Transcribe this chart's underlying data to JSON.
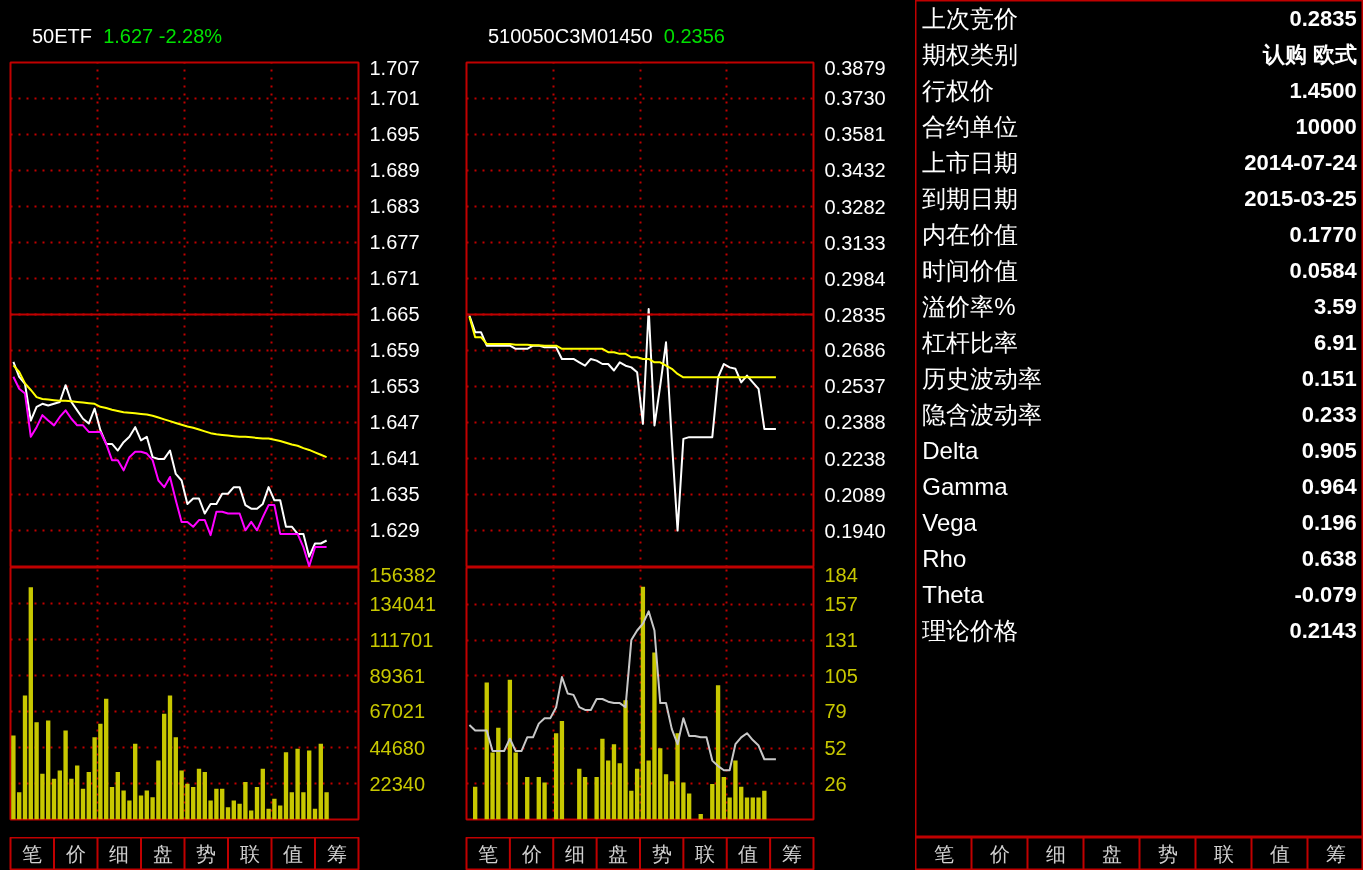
{
  "chart_data": [
    {
      "type": "line",
      "title": "50ETF",
      "subtitle": "1.627 -2.28%",
      "categories": [
        null,
        null,
        null,
        null,
        null,
        null,
        null,
        null,
        null,
        null,
        null,
        null,
        null,
        null,
        null,
        null,
        null,
        null,
        null,
        null,
        null,
        null,
        null,
        null,
        null,
        null,
        null,
        null,
        null,
        null,
        null,
        null,
        null,
        null,
        null,
        null,
        null,
        null,
        null,
        null,
        null,
        null,
        null,
        null,
        null,
        null,
        null,
        null,
        null,
        null,
        null,
        null,
        null,
        null,
        null,
        null,
        null,
        null,
        null,
        null
      ],
      "ylim": [
        1.6228,
        1.707
      ],
      "yticks": [
        1.707,
        1.701,
        1.695,
        1.689,
        1.683,
        1.677,
        1.671,
        1.665,
        1.659,
        1.653,
        1.647,
        1.641,
        1.635,
        1.629
      ],
      "tick_labels": "y",
      "grid": true,
      "ref_lines": [
        {
          "axis": "y",
          "value": 1.665,
          "color": "#c00000"
        }
      ],
      "series": [
        {
          "color": "#ffffff",
          "values": [
            1.6571,
            1.6546,
            1.6534,
            1.6473,
            1.6496,
            1.6501,
            1.6498,
            1.6501,
            1.6504,
            1.6532,
            1.6504,
            1.649,
            1.6476,
            1.6468,
            1.6493,
            1.6457,
            1.6434,
            1.6434,
            1.6423,
            1.6437,
            1.6446,
            1.6462,
            1.644,
            1.6446,
            1.6412,
            1.6409,
            1.6409,
            1.6423,
            1.6384,
            1.6373,
            1.6334,
            1.6343,
            1.6343,
            1.6318,
            1.6334,
            1.6334,
            1.6351,
            1.6351,
            1.6362,
            1.6362,
            1.6332,
            1.6326,
            1.6326,
            1.6334,
            1.6362,
            1.634,
            1.634,
            1.6296,
            1.6296,
            1.6284,
            1.6284,
            1.6246,
            1.6268,
            1.6268,
            1.6273,
            null,
            null,
            null,
            null,
            null
          ]
        },
        {
          "color": "#ff00ff",
          "values": [
            1.6546,
            1.6526,
            1.6518,
            1.6446,
            1.6462,
            1.6482,
            1.6473,
            1.6465,
            1.6479,
            1.649,
            1.6476,
            1.6465,
            1.6465,
            1.6454,
            1.6454,
            1.6454,
            1.6434,
            1.6407,
            1.6407,
            1.639,
            1.6412,
            1.6421,
            1.6421,
            1.6418,
            1.6407,
            1.6373,
            1.6362,
            1.6379,
            1.634,
            1.6304,
            1.6304,
            1.6296,
            1.6307,
            1.6307,
            1.6282,
            1.6321,
            1.6321,
            1.6318,
            1.6318,
            1.6318,
            1.629,
            1.6304,
            1.629,
            1.6312,
            1.6332,
            1.6332,
            1.6284,
            1.6284,
            1.6284,
            1.6284,
            1.6262,
            1.623,
            1.6262,
            1.6262,
            1.6262,
            null,
            null,
            null,
            null,
            null
          ]
        },
        {
          "color": "#ffff00",
          "values": [
            1.6565,
            1.6554,
            1.6535,
            1.6524,
            1.6512,
            1.6509,
            1.6508,
            1.6507,
            1.6506,
            1.6506,
            1.6505,
            1.6504,
            1.6503,
            1.6502,
            1.6501,
            1.6496,
            1.6494,
            1.6491,
            1.6489,
            1.6487,
            1.6486,
            1.6485,
            1.6484,
            1.6483,
            1.6481,
            1.6478,
            1.6475,
            1.6472,
            1.6469,
            1.6466,
            1.6463,
            1.6461,
            1.6458,
            1.6455,
            1.6452,
            1.645,
            1.6449,
            1.6448,
            1.6447,
            1.6446,
            1.6446,
            1.6445,
            1.6444,
            1.6443,
            1.6443,
            1.6441,
            1.6439,
            1.6436,
            1.6433,
            1.6431,
            1.6427,
            1.6424,
            1.642,
            1.6416,
            1.6412,
            null,
            null,
            null,
            null,
            null
          ]
        }
      ]
    },
    {
      "type": "bar",
      "categories": [
        null,
        null,
        null,
        null,
        null,
        null,
        null,
        null,
        null,
        null,
        null,
        null,
        null,
        null,
        null,
        null,
        null,
        null,
        null,
        null,
        null,
        null,
        null,
        null,
        null,
        null,
        null,
        null,
        null,
        null,
        null,
        null,
        null,
        null,
        null,
        null,
        null,
        null,
        null,
        null,
        null,
        null,
        null,
        null,
        null,
        null,
        null,
        null,
        null,
        null,
        null,
        null,
        null,
        null,
        null,
        null,
        null,
        null,
        null,
        null
      ],
      "ylim": [
        0,
        156382
      ],
      "yticks": [
        156382,
        134041,
        111701,
        89361,
        67021,
        44680,
        22340
      ],
      "tick_labels": "y",
      "grid": true,
      "series": [
        {
          "color": "#c8c800",
          "values": [
            52100,
            16900,
            77000,
            144200,
            60400,
            28400,
            61400,
            25300,
            30400,
            55200,
            25300,
            33500,
            19100,
            29400,
            51100,
            59400,
            74900,
            20100,
            29400,
            18000,
            11800,
            47000,
            14900,
            18000,
            13800,
            36600,
            65600,
            77000,
            51100,
            30400,
            22200,
            20100,
            31500,
            29400,
            11800,
            19100,
            19100,
            7600,
            11800,
            9700,
            23200,
            5600,
            20100,
            31500,
            6600,
            12900,
            8700,
            41800,
            16900,
            43900,
            16900,
            42800,
            6600,
            47000,
            16900,
            null,
            null,
            null,
            null,
            null
          ]
        }
      ]
    },
    {
      "type": "other",
      "categories": [
        "笔",
        "价",
        "细",
        "盘",
        "势",
        "联",
        "值",
        "筹"
      ]
    },
    {
      "type": "line",
      "title": "510050C3M01450",
      "subtitle": "0.2356",
      "categories": [
        null,
        null,
        null,
        null,
        null,
        null,
        null,
        null,
        null,
        null,
        null,
        null,
        null,
        null,
        null,
        null,
        null,
        null,
        null,
        null,
        null,
        null,
        null,
        null,
        null,
        null,
        null,
        null,
        null,
        null,
        null,
        null,
        null,
        null,
        null,
        null,
        null,
        null,
        null,
        null,
        null,
        null,
        null,
        null,
        null,
        null,
        null,
        null,
        null,
        null,
        null,
        null,
        null,
        null,
        null,
        null,
        null,
        null,
        null,
        null
      ],
      "ylim": [
        0.1787,
        0.3879
      ],
      "yticks": [
        0.3879,
        {
          "value": 0.373,
          "label": "0.3730"
        },
        0.3581,
        0.3432,
        0.3282,
        0.3133,
        0.2984,
        0.2835,
        0.2686,
        0.2537,
        0.2388,
        0.2238,
        0.2089,
        {
          "value": 0.194,
          "label": "0.1940"
        }
      ],
      "tick_labels": "y",
      "grid": true,
      "ref_lines": [
        {
          "axis": "y",
          "value": 0.2835,
          "color": "#c00000"
        }
      ],
      "series": [
        {
          "color": "#ffffff",
          "values": [
            0.2831,
            0.2762,
            0.2762,
            0.2706,
            0.2706,
            0.2706,
            0.2706,
            0.2706,
            0.2693,
            0.2693,
            0.2693,
            0.2706,
            0.2706,
            0.2699,
            0.2699,
            0.2699,
            0.2651,
            0.2651,
            0.2651,
            0.2637,
            0.2623,
            0.2651,
            0.2644,
            0.263,
            0.263,
            0.2603,
            0.2637,
            0.2623,
            0.2616,
            0.2596,
            0.2382,
            0.2858,
            0.2375,
            0.2541,
            0.272,
            0.2313,
            0.194,
            0.232,
            0.2327,
            0.2327,
            0.2327,
            0.2327,
            0.2327,
            0.2575,
            0.263,
            0.2616,
            0.261,
            0.2554,
            0.2582,
            0.2554,
            0.2527,
            0.2361,
            0.2361,
            0.2361,
            null,
            null,
            null,
            null,
            null,
            null
          ]
        },
        {
          "color": "#ffff00",
          "values": [
            0.2826,
            0.2741,
            0.2741,
            0.2713,
            0.2713,
            0.2713,
            0.2713,
            0.2713,
            0.271,
            0.271,
            0.271,
            0.2708,
            0.2708,
            0.2706,
            0.2706,
            0.2706,
            0.2693,
            0.2693,
            0.2693,
            0.2693,
            0.2693,
            0.2693,
            0.2693,
            0.2693,
            0.2679,
            0.2679,
            0.2672,
            0.2672,
            0.2658,
            0.2658,
            0.2651,
            0.2651,
            0.2637,
            0.2637,
            0.2623,
            0.261,
            0.2589,
            0.2575,
            0.2575,
            0.2575,
            0.2575,
            0.2575,
            0.2575,
            0.2575,
            0.2575,
            0.2575,
            0.2575,
            0.2575,
            0.2575,
            0.2575,
            0.2575,
            0.2575,
            0.2575,
            0.2575,
            null,
            null,
            null,
            null,
            null,
            null
          ]
        }
      ]
    },
    {
      "type": "bar",
      "categories": [
        null,
        null,
        null,
        null,
        null,
        null,
        null,
        null,
        null,
        null,
        null,
        null,
        null,
        null,
        null,
        null,
        null,
        null,
        null,
        null,
        null,
        null,
        null,
        null,
        null,
        null,
        null,
        null,
        null,
        null,
        null,
        null,
        null,
        null,
        null,
        null,
        null,
        null,
        null,
        null,
        null,
        null,
        null,
        null,
        null,
        null,
        null,
        null,
        null,
        null,
        null,
        null,
        null,
        null,
        null,
        null,
        null,
        null,
        null,
        null
      ],
      "ylim": [
        0,
        184
      ],
      "yticks": [
        184,
        157,
        131,
        105,
        79,
        52,
        26
      ],
      "tick_labels": "y",
      "grid": true,
      "series": [
        {
          "color": "#c8c800",
          "values": [
            0,
            24,
            0,
            100,
            49,
            67,
            0,
            102,
            49,
            0,
            31,
            0,
            31,
            27,
            0,
            63,
            72,
            0,
            0,
            37,
            31,
            0,
            31,
            59,
            43,
            55,
            41,
            87,
            21,
            37,
            170,
            43,
            122,
            52,
            33,
            28,
            63,
            27,
            19,
            0,
            4,
            0,
            26,
            98,
            31,
            16,
            43,
            24,
            16,
            16,
            16,
            21,
            0,
            0,
            null,
            null,
            null,
            null,
            null,
            null
          ]
        },
        {
          "type": "line",
          "color": "#c8c8c8",
          "values": [
            69,
            65,
            65,
            65,
            50,
            50,
            50,
            59,
            50,
            50,
            60,
            60,
            70,
            74,
            74,
            82,
            104,
            92,
            91,
            82,
            80,
            80,
            88,
            88,
            86,
            85,
            85,
            82,
            131,
            138,
            143,
            152,
            138,
            85,
            85,
            66,
            55,
            74,
            61,
            61,
            60,
            60,
            43,
            39,
            36,
            36,
            55,
            60,
            63,
            58,
            54,
            44,
            44,
            44,
            null,
            null,
            null,
            null,
            null,
            null
          ]
        }
      ]
    },
    {
      "type": "other",
      "categories": [
        "笔",
        "价",
        "细",
        "盘",
        "势",
        "联",
        "值",
        "筹"
      ]
    },
    {
      "type": "other",
      "annotations": [
        "上次竞价",
        "0.2835",
        "期权类别",
        "认购 欧式",
        "行权价",
        "1.4500",
        "合约单位",
        "10000",
        "上市日期",
        "2014-07-24",
        "到期日期",
        "2015-03-25",
        "内在价值",
        "0.1770",
        "时间价值",
        "0.0584",
        "溢价率%",
        "3.59",
        "杠杆比率",
        "6.91",
        "历史波动率",
        "0.151",
        "隐含波动率",
        "0.233",
        "Delta",
        "0.905",
        "Gamma",
        "0.964",
        "Vega",
        "0.196",
        "Rho",
        "0.638",
        "Theta",
        "-0.079",
        "理论价格",
        "0.2143"
      ]
    },
    {
      "type": "other",
      "categories": [
        "笔",
        "价",
        "细",
        "盘",
        "势",
        "联",
        "值",
        "筹"
      ]
    }
  ]
}
